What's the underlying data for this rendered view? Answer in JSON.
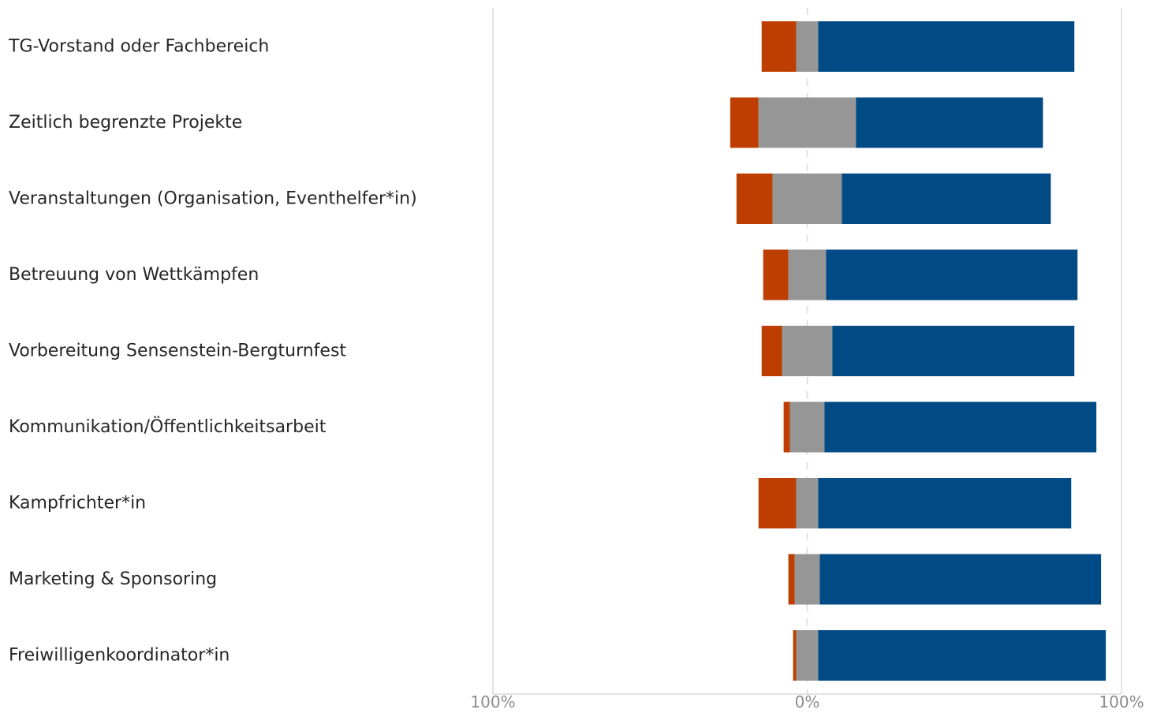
{
  "chart_data": {
    "type": "bar",
    "orientation": "horizontal",
    "stacked": "diverging",
    "title": "",
    "xlabel": "",
    "ylabel": "",
    "xlim": [
      -100,
      100
    ],
    "x_ticks": [
      {
        "value": -100,
        "label": "100%"
      },
      {
        "value": 0,
        "label": "0%"
      },
      {
        "value": 100,
        "label": "100%"
      }
    ],
    "grid": true,
    "legend": "none",
    "categories": [
      "TG-Vorstand oder Fachbereich",
      "Zeitlich begrenzte Projekte",
      "Veranstaltungen (Organisation, Eventhelfer*in)",
      "Betreuung von Wettkämpfen",
      "Vorbereitung Sensenstein-Bergturnfest",
      "Kommunikation/Öffentlichkeitsarbeit",
      "Kampfrichter*in",
      "Marketing & Sponsoring",
      "Freiwilligenkoordinator*in"
    ],
    "series": [
      {
        "color": "#bd3e00",
        "values": [
          11,
          9,
          11.5,
          8,
          6.5,
          2,
          12,
          2,
          1
        ]
      },
      {
        "color": "#969696",
        "values": [
          7,
          31,
          22,
          12,
          16,
          11,
          7,
          8,
          7
        ]
      },
      {
        "color": "#004a85",
        "values": [
          81.5,
          59.5,
          66.5,
          80,
          77,
          86.5,
          80.5,
          89.5,
          91.5
        ]
      }
    ]
  }
}
